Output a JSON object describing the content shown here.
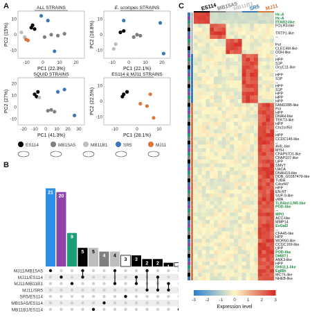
{
  "panel_labels": {
    "a": "A",
    "b": "B",
    "c": "C"
  },
  "pca": {
    "plots": [
      {
        "title": "ALL STRAINS",
        "title_italic_prefix": "",
        "xlabel": "PC1 (22.3%)",
        "ylabel": "PC2 (15%)",
        "xticks": [
          "-10",
          "0",
          "10",
          "20"
        ],
        "yticks": [
          "-10",
          "0",
          "10"
        ]
      },
      {
        "title": " STRAINS",
        "title_italic_prefix": "E. scolopes",
        "xlabel": "PC1 (22.1%)",
        "ylabel": "PC2 (18.8%)",
        "xticks": [
          "-10",
          "0",
          "10",
          "20"
        ],
        "yticks": [
          "-10",
          "0",
          "10"
        ]
      },
      {
        "title": "SQUID STRAINS",
        "title_italic_prefix": "",
        "xlabel": "PC1 (41.3%)",
        "ylabel": "PC2 (27%)",
        "xticks": [
          "-20",
          "-10",
          "0",
          "10",
          "20",
          "30"
        ],
        "yticks": [
          "-10",
          "0",
          "10",
          "20"
        ]
      },
      {
        "title": "ES114 & MJ11 STRAINS",
        "title_italic_prefix": "",
        "xlabel": "PC1 (28.1%)",
        "ylabel": "PC2 (22.5%)",
        "xticks": [
          "-10",
          "0",
          "10"
        ],
        "yticks": [
          "-10",
          "0",
          "10"
        ]
      }
    ],
    "legend": [
      {
        "label": "ES114",
        "color": "#000000"
      },
      {
        "label": "MB15A5",
        "color": "#7f7f7f"
      },
      {
        "label": "MB11B1",
        "color": "#bdbdbd"
      },
      {
        "label": "SR5",
        "color": "#3a78b5"
      },
      {
        "label": "MJ11",
        "color": "#d9773a"
      }
    ]
  },
  "chart_data": [
    {
      "type": "bar",
      "title": "",
      "categories": [
        "1",
        "2",
        "3",
        "4",
        "5",
        "6",
        "7",
        "8",
        "9",
        "10",
        "11",
        "12",
        "13"
      ],
      "values": [
        21,
        20,
        9,
        5,
        5,
        4,
        4,
        3,
        3,
        2,
        2,
        1,
        1
      ],
      "bar_colors": [
        "#2f8fe6",
        "#8e44ad",
        "#1a9e77",
        "#000000",
        "#bdbdbd",
        "#7f7f7f",
        "#bdbdbd",
        "#ffffff",
        "#000000",
        "#000000",
        "#000000",
        "#000000",
        "#ffffff"
      ],
      "set_labels": [
        "MJ11/MB15A5",
        "MJ11/ES114",
        "MJ11/MB11B1",
        "MJ11/SR5",
        "SR5/ES114",
        "MB15A5/ES114",
        "MB11B1/ES114"
      ],
      "matrix": [
        [
          1,
          0,
          0,
          0,
          0,
          0,
          0
        ],
        [
          0,
          1,
          0,
          0,
          0,
          0,
          0
        ],
        [
          0,
          0,
          1,
          0,
          0,
          0,
          0
        ],
        [
          1,
          1,
          0,
          0,
          0,
          0,
          0
        ],
        [
          0,
          0,
          0,
          0,
          0,
          0,
          1
        ],
        [
          0,
          0,
          0,
          0,
          0,
          1,
          0
        ],
        [
          1,
          0,
          1,
          0,
          0,
          0,
          0
        ],
        [
          0,
          0,
          0,
          0,
          1,
          0,
          0
        ],
        [
          0,
          1,
          1,
          0,
          0,
          0,
          0
        ],
        [
          1,
          0,
          0,
          1,
          0,
          0,
          0
        ],
        [
          0,
          1,
          0,
          1,
          0,
          0,
          0
        ],
        [
          0,
          0,
          1,
          1,
          0,
          0,
          0
        ],
        [
          0,
          0,
          0,
          0,
          0,
          0,
          1
        ]
      ]
    },
    {
      "type": "heatmap",
      "title": "",
      "columns": [
        "ES114",
        "MB15A5",
        "MB11B1",
        "SR5",
        "MJ11"
      ],
      "column_colors": [
        "#000000",
        "#7f7f7f",
        "#bdbdbd",
        "#3a78b5",
        "#d9773a"
      ],
      "replicates_per_column": 4,
      "colorbar": {
        "label": "Expression level",
        "ticks": [
          "-3",
          "-2",
          "-1",
          "0",
          "1",
          "2",
          "3"
        ],
        "min": -3,
        "max": 3
      },
      "rows": [
        {
          "label": "Hc-A",
          "group": "all",
          "green": true
        },
        {
          "label": "Hc-A",
          "group": "all",
          "green": true
        },
        {
          "label": "FFAR2-like",
          "group": "all",
          "green": true
        },
        {
          "label": "FOLR3-like",
          "group": "mb15"
        },
        {
          "label": "",
          "group": "mb15"
        },
        {
          "label": "TRTP1-like",
          "group": "mb15"
        },
        {
          "label": "--",
          "group": "mb15"
        },
        {
          "label": "",
          "group": "mb11"
        },
        {
          "label": "Pol",
          "group": "mb11"
        },
        {
          "label": "CLEC4M-like",
          "group": "mb11"
        },
        {
          "label": "ODH-like",
          "group": "mb11"
        },
        {
          "label": "--",
          "group": "sr5"
        },
        {
          "label": "HPP",
          "group": "sr5"
        },
        {
          "label": "S1P",
          "group": "sr5"
        },
        {
          "label": "OcyC11-like",
          "group": "sr5"
        },
        {
          "label": "--",
          "group": "sr5"
        },
        {
          "label": "HPP",
          "group": "sr5"
        },
        {
          "label": "S1P",
          "group": "sr5"
        },
        {
          "label": "--",
          "group": "sr5"
        },
        {
          "label": "HPP",
          "group": "sr5"
        },
        {
          "label": "S1P",
          "group": "sr5"
        },
        {
          "label": "HPP",
          "group": "sr5"
        },
        {
          "label": "HPP",
          "group": "sr5"
        },
        {
          "label": "HPP",
          "group": "sr5"
        },
        {
          "label": "FAM228B-like",
          "group": "mj11"
        },
        {
          "label": "Pol",
          "group": "mj11"
        },
        {
          "label": "HPP",
          "group": "mj11"
        },
        {
          "label": "DNAH-like",
          "group": "mj11"
        },
        {
          "label": "TEKT3-like",
          "group": "mj11"
        },
        {
          "label": "HPP",
          "group": "mj11"
        },
        {
          "label": "Chr2orf50",
          "group": "mj11"
        },
        {
          "label": "--",
          "group": "mj11"
        },
        {
          "label": "HPP",
          "group": "mj11"
        },
        {
          "label": "CCDC146-like",
          "group": "mj11"
        },
        {
          "label": "--",
          "group": "mj11"
        },
        {
          "label": "AVIL-like",
          "group": "mj11"
        },
        {
          "label": "MYH",
          "group": "mj11"
        },
        {
          "label": "CFAP97D1-like",
          "group": "mj11"
        },
        {
          "label": "CFAP107-like",
          "group": "mj11"
        },
        {
          "label": "UPP",
          "group": "mj11"
        },
        {
          "label": "SMVT",
          "group": "mj11"
        },
        {
          "label": "UACA",
          "group": "mj11"
        },
        {
          "label": "DNAH10-like",
          "group": "mj11"
        },
        {
          "label": "DDB_G0287479-like",
          "group": "mj11"
        },
        {
          "label": "TUBA",
          "group": "mj11"
        },
        {
          "label": "C4orf47",
          "group": "mj11"
        },
        {
          "label": "HPP",
          "group": "mj11"
        },
        {
          "label": "EN-RT",
          "group": "mj11"
        },
        {
          "label": "SUP-9-like",
          "group": "mj11"
        },
        {
          "label": "vWA",
          "group": "mj11"
        },
        {
          "label": "TLR4int-LRR-like",
          "group": "mj11",
          "green": true
        },
        {
          "label": "POD-like",
          "group": "mj11",
          "green": true
        },
        {
          "label": "--",
          "group": "mj11"
        },
        {
          "label": "MPO",
          "group": "mj11",
          "green": true
        },
        {
          "label": "ACC-like",
          "group": "mj11"
        },
        {
          "label": "MMP14",
          "group": "mj11"
        },
        {
          "label": "EsGal2",
          "group": "mj11",
          "green": true
        },
        {
          "label": "--",
          "group": "mj11"
        },
        {
          "label": "CFA45-like",
          "group": "mj11"
        },
        {
          "label": "HPP",
          "group": "mj11"
        },
        {
          "label": "WDR60-like",
          "group": "mj11"
        },
        {
          "label": "CCDC169-like",
          "group": "mj11"
        },
        {
          "label": "UPP",
          "group": "mj11"
        },
        {
          "label": "POD-like",
          "group": "mj11",
          "green": true
        },
        {
          "label": "DMBT1",
          "group": "mj11",
          "green": true
        },
        {
          "label": "ANK3-like",
          "group": "mj11"
        },
        {
          "label": "HPP",
          "group": "mj11"
        },
        {
          "label": "OHI1L1-like",
          "group": "mj11",
          "green": true
        },
        {
          "label": "EgIBh",
          "group": "mj11",
          "green": true
        },
        {
          "label": "MCT5-like",
          "group": "mj11"
        },
        {
          "label": "NHEB-like",
          "group": "mj11"
        }
      ]
    }
  ]
}
